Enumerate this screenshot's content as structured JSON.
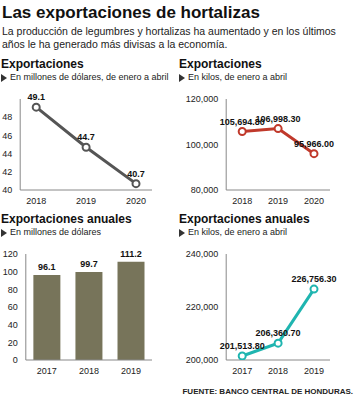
{
  "title": "Las exportaciones de hortalizas",
  "subtitle": "La producción de legumbres y hortalizas ha aumentado y en los últimos años le ha generado más divisas a la economía.",
  "source": "FUENTE: BANCO CENTRAL DE HONDURAS.",
  "chart_data": [
    {
      "type": "line",
      "title": "Exportaciones",
      "subtitle": "En millones de dólares, de enero a abril",
      "categories": [
        "2018",
        "2019",
        "2020"
      ],
      "values": [
        49.1,
        44.7,
        40.7
      ],
      "color": "#555555",
      "marker": "circle",
      "ylim": [
        40,
        50
      ],
      "yticks": [
        40,
        42,
        44,
        46,
        48
      ],
      "grid": false,
      "data_labels": true
    },
    {
      "type": "line",
      "title": "Exportaciones",
      "subtitle": "En kilos, de enero a abril",
      "categories": [
        "2018",
        "2019",
        "2020"
      ],
      "values": [
        105694.8,
        106998.3,
        95966.0
      ],
      "value_labels": [
        "105,694.80",
        "106,998.30",
        "95,966.00"
      ],
      "color": "#c0392b",
      "marker": "circle",
      "ylim": [
        80000,
        120000
      ],
      "yticks": [
        {
          "value": 80000,
          "label": "80,000"
        },
        {
          "value": 100000,
          "label": "100,000"
        },
        {
          "value": 120000,
          "label": "120,000"
        }
      ],
      "grid": false,
      "data_labels": true
    },
    {
      "type": "bar",
      "title": "Exportaciones anuales",
      "subtitle": "En millones de dólares",
      "categories": [
        "2017",
        "2018",
        "2019"
      ],
      "values": [
        96.1,
        99.7,
        111.2
      ],
      "color": "#77745a",
      "ylim": [
        0,
        120
      ],
      "yticks": [
        0,
        20,
        40,
        60,
        80,
        100,
        120
      ],
      "grid": false,
      "data_labels": true
    },
    {
      "type": "line",
      "title": "Exportaciones anuales",
      "subtitle": "En kilos, de enero a abril",
      "categories": [
        "2017",
        "2018",
        "2019"
      ],
      "values": [
        201513.8,
        206360.7,
        226756.3
      ],
      "value_labels": [
        "201,513.80",
        "206,360.70",
        "226,756.30"
      ],
      "color": "#1fb5b0",
      "marker": "circle",
      "ylim": [
        200000,
        240000
      ],
      "yticks": [
        {
          "value": 200000,
          "label": "200,000"
        },
        {
          "value": 220000,
          "label": "220,000"
        },
        {
          "value": 240000,
          "label": "240,000"
        }
      ],
      "grid": false,
      "data_labels": true
    }
  ]
}
